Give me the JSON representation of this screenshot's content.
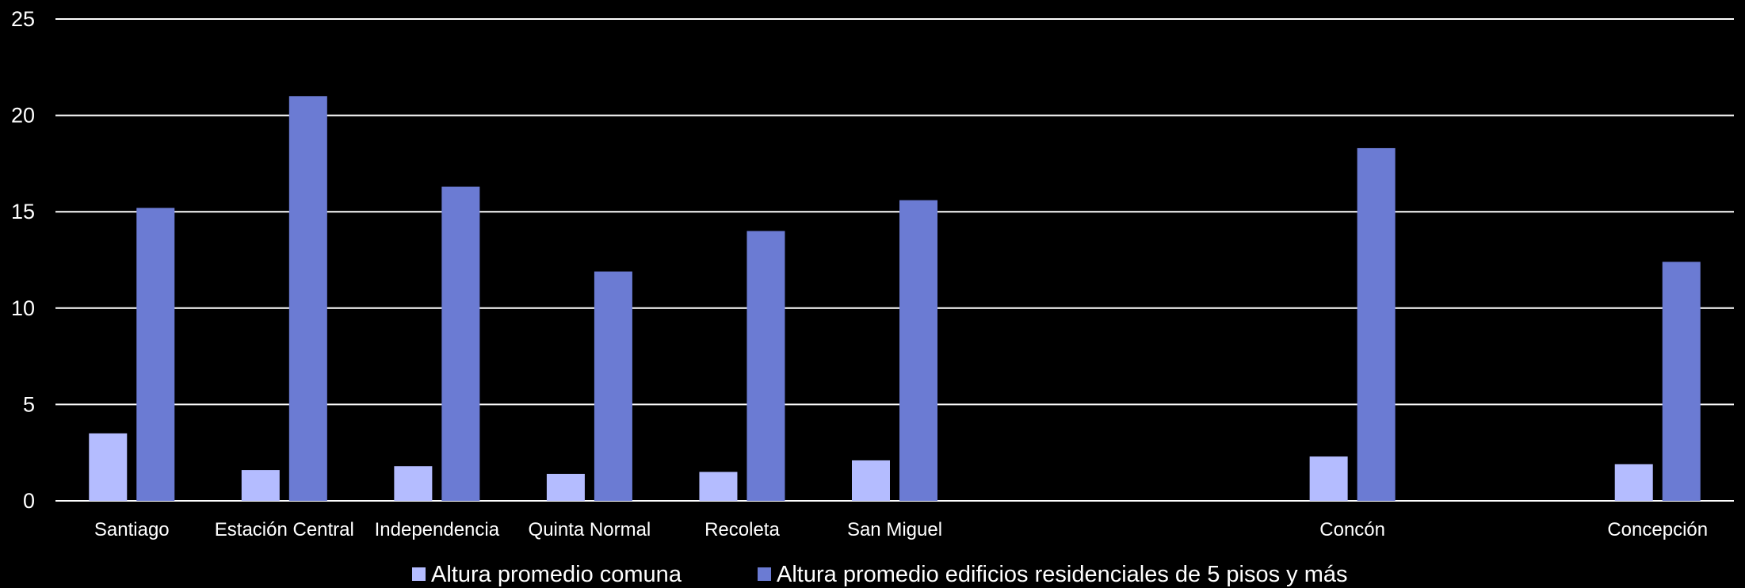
{
  "chart_data": {
    "type": "bar",
    "title": "",
    "xlabel": "",
    "ylabel": "",
    "ylim": [
      0,
      25
    ],
    "yticks": [
      "0",
      "5",
      "10",
      "15",
      "20",
      "25"
    ],
    "grid": true,
    "legend_position": "bottom",
    "categories": [
      "Santiago",
      "Estación Central",
      "Independencia",
      "Quinta Normal",
      "Recoleta",
      "San Miguel",
      "",
      "",
      "Concón",
      "",
      "Concepción"
    ],
    "series": [
      {
        "name": "Altura promedio comuna",
        "color": "#B4BCFF",
        "values": [
          3.5,
          1.6,
          1.8,
          1.4,
          1.5,
          2.1,
          null,
          null,
          2.3,
          null,
          1.9
        ]
      },
      {
        "name": "Altura promedio edificios residenciales de 5 pisos y más",
        "color": "#6B7BD3",
        "values": [
          15.2,
          21.0,
          16.3,
          11.9,
          14.0,
          15.6,
          null,
          null,
          18.3,
          null,
          12.4
        ]
      }
    ]
  }
}
